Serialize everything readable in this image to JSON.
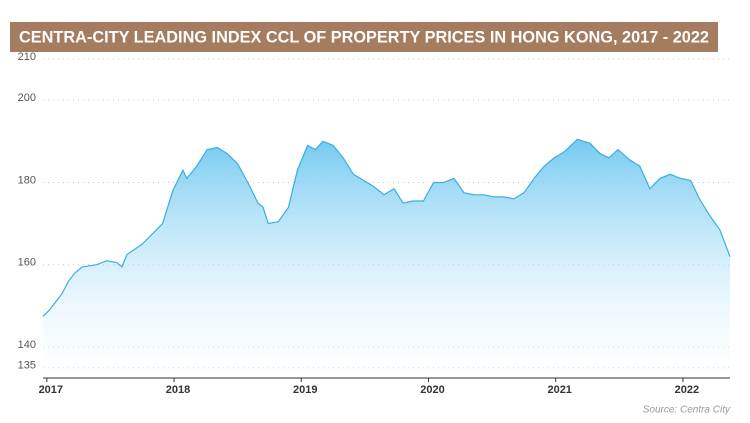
{
  "chart_data": {
    "type": "area",
    "title": "CENTRA-CITY LEADING INDEX CCL OF PROPERTY PRICES IN HONG KONG, 2017 - 2022",
    "source": "Source: Centra City",
    "color": "#3aaee0",
    "x": [
      2016.97,
      2017.02,
      2017.07,
      2017.12,
      2017.17,
      2017.22,
      2017.28,
      2017.39,
      2017.47,
      2017.55,
      2017.59,
      2017.63,
      2017.75,
      2017.83,
      2017.91,
      2017.99,
      2018.07,
      2018.1,
      2018.18,
      2018.26,
      2018.34,
      2018.42,
      2018.5,
      2018.58,
      2018.66,
      2018.7,
      2018.74,
      2018.82,
      2018.9,
      2018.97,
      2019.05,
      2019.11,
      2019.17,
      2019.25,
      2019.33,
      2019.41,
      2019.49,
      2019.57,
      2019.65,
      2019.73,
      2019.8,
      2019.88,
      2019.96,
      2020.04,
      2020.12,
      2020.2,
      2020.28,
      2020.36,
      2020.44,
      2020.51,
      2020.59,
      2020.67,
      2020.75,
      2020.83,
      2020.91,
      2020.99,
      2021.07,
      2021.17,
      2021.27,
      2021.35,
      2021.42,
      2021.49,
      2021.58,
      2021.66,
      2021.74,
      2021.82,
      2021.9,
      2021.98,
      2022.06,
      2022.13,
      2022.21,
      2022.29,
      2022.37
    ],
    "values": [
      147.5,
      149,
      151,
      153,
      156,
      158,
      159.5,
      160,
      161,
      160.5,
      159.5,
      162.5,
      165,
      167.5,
      170,
      178,
      183,
      181,
      184,
      188,
      188.5,
      187,
      184.5,
      180,
      175,
      174,
      170,
      170.5,
      174,
      183,
      189,
      188,
      190,
      189,
      186,
      182,
      180.5,
      179,
      177,
      178.5,
      175,
      175.5,
      175.5,
      180,
      180,
      181,
      177.5,
      177,
      177,
      176.5,
      176.5,
      176,
      177.5,
      181,
      184,
      186,
      187.5,
      190.5,
      189.5,
      187,
      186,
      188,
      185.5,
      184,
      178.5,
      181,
      182,
      181,
      180.5,
      176,
      172,
      168.5,
      162
    ],
    "xlim": [
      2016.97,
      2022.37
    ],
    "xticks": [
      2017,
      2018,
      2019,
      2020,
      2021,
      2022
    ],
    "ylim": [
      132.5,
      210
    ],
    "yticks": [
      135,
      140,
      160,
      180,
      200,
      210
    ],
    "grid": true
  }
}
